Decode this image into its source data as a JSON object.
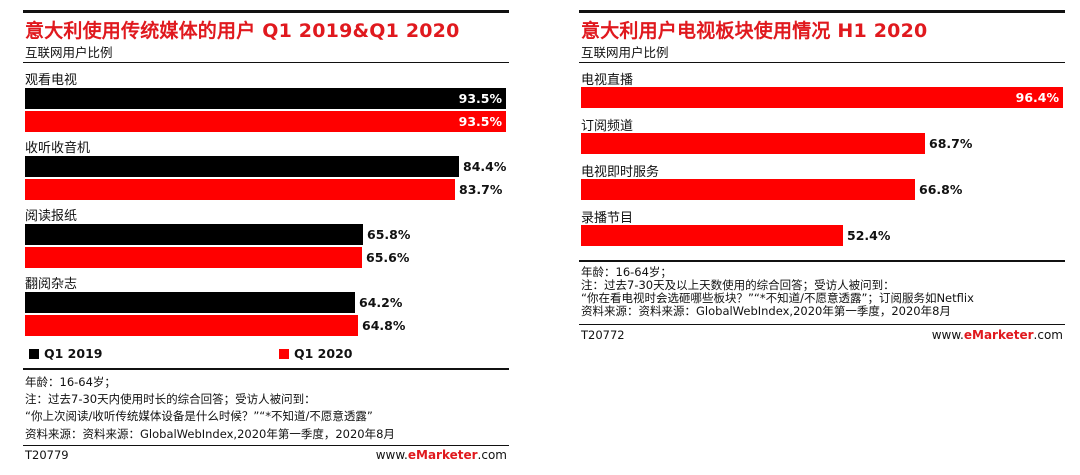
{
  "chart_data": [
    {
      "type": "bar",
      "orientation": "horizontal",
      "title": "意大利使用传统媒体的用户 Q1 2019&Q1 2020",
      "subtitle": "互联网用户比例",
      "categories": [
        "观看电视",
        "收听收音机",
        "阅读报纸",
        "翻阅杂志"
      ],
      "series": [
        {
          "name": "Q1 2019",
          "color": "#000000",
          "values": [
            93.5,
            84.4,
            65.8,
            64.2
          ],
          "labels": [
            "93.5%",
            "84.4%",
            "65.8%",
            "64.2%"
          ]
        },
        {
          "name": "Q1 2020",
          "color": "#ff0000",
          "values": [
            93.5,
            83.7,
            65.6,
            64.8
          ],
          "labels": [
            "93.5%",
            "83.7%",
            "65.6%",
            "64.8%"
          ]
        }
      ],
      "xlim": [
        0,
        100
      ],
      "legend": "bottom",
      "notes": [
        "年龄：16-64岁；",
        "注：过去7-30天内使用时长的综合回答；受访人被问到：",
        "“你上次阅读/收听传统媒体设备是什么时候？”“*不知道/不愿意透露”",
        "资料来源：资料来源：GlobalWebIndex,2020年第一季度，2020年8月"
      ],
      "id": "T20779",
      "site_prefix": "www.",
      "site_brand": "eMarketer",
      "site_suffix": ".com"
    },
    {
      "type": "bar",
      "orientation": "horizontal",
      "title": "意大利用户电视板块使用情况 H1 2020",
      "subtitle": "互联网用户比例",
      "categories": [
        "电视直播",
        "订阅频道",
        "电视即时服务",
        "录播节目"
      ],
      "series": [
        {
          "name": "H1 2020",
          "color": "#ff0000",
          "values": [
            96.4,
            68.7,
            66.8,
            52.4
          ],
          "labels": [
            "96.4%",
            "68.7%",
            "66.8%",
            "52.4%"
          ]
        }
      ],
      "xlim": [
        0,
        100
      ],
      "notes": [
        "年龄：16-64岁；",
        "注：过去7-30天及以上天数使用的综合回答；受访人被问到：",
        "“你在看电视时会选砸哪些板块？”“*不知道/不愿意透露”；订阅服务如Netflix",
        "资料来源：资料来源：GlobalWebIndex,2020年第一季度，2020年8月"
      ],
      "id": "T20772",
      "site_prefix": "www.",
      "site_brand": "eMarketer",
      "site_suffix": ".com"
    }
  ]
}
